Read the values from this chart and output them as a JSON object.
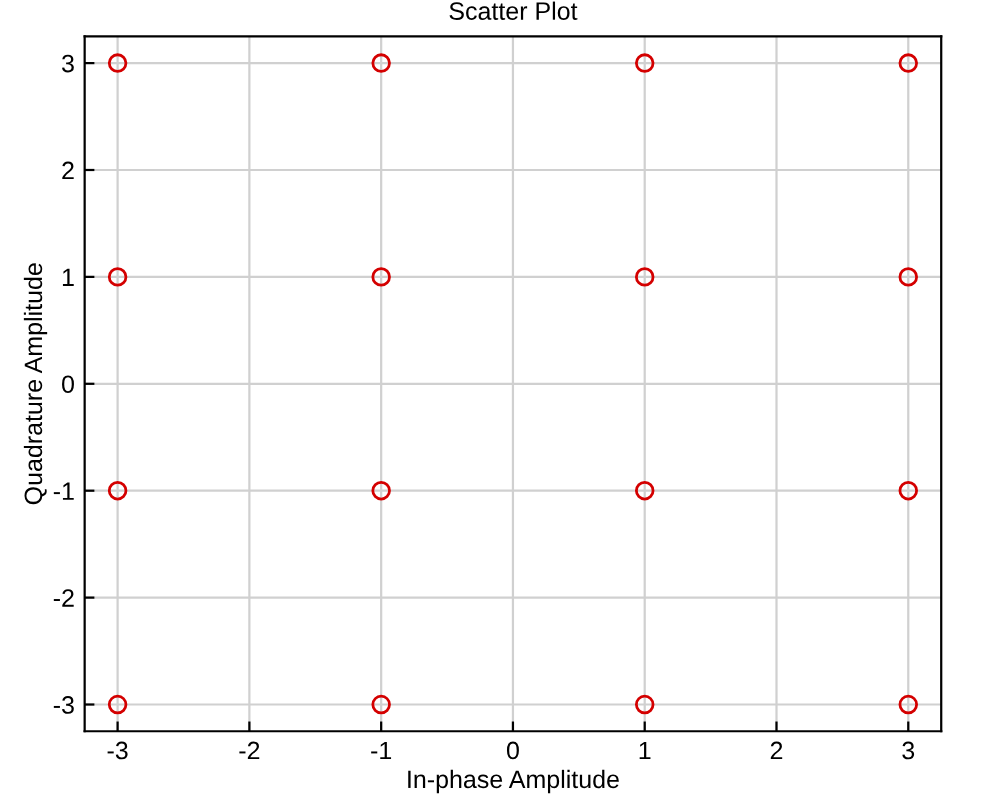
{
  "chart_data": {
    "type": "scatter",
    "title": "Scatter Plot",
    "xlabel": "In-phase Amplitude",
    "ylabel": "Quadrature Amplitude",
    "series": [
      {
        "color": "#d40000",
        "x": [
          -3,
          -1,
          1,
          3,
          -3,
          -1,
          1,
          3,
          -3,
          -1,
          1,
          3,
          -3,
          -1,
          1,
          3
        ],
        "values": [
          3,
          3,
          3,
          3,
          1,
          1,
          1,
          1,
          -1,
          -1,
          -1,
          -1,
          -3,
          -3,
          -3,
          -3
        ]
      }
    ],
    "marker": "circle",
    "xlim": [
      -3.25,
      3.25
    ],
    "ylim": [
      -3.25,
      3.25
    ],
    "xticks": [
      -3,
      -2,
      -1,
      0,
      1,
      2,
      3
    ],
    "yticks": [
      -3,
      -2,
      -1,
      0,
      1,
      2,
      3
    ],
    "grid": true,
    "legend": false
  }
}
